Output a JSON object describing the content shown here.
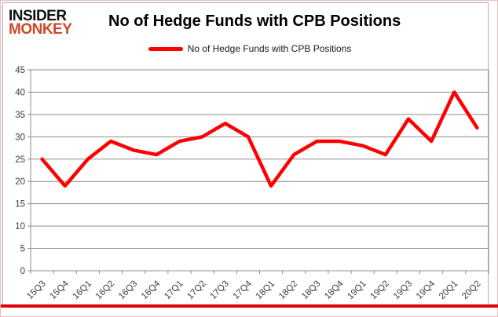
{
  "header": {
    "logo_line1": "INSIDER",
    "logo_line2": "MONKEY",
    "title": "No of Hedge Funds with CPB Positions"
  },
  "legend": {
    "label": "No of Hedge Funds with CPB Positions"
  },
  "colors": {
    "line": "#fe0000",
    "logo_red": "#cf4727",
    "grid": "#8c8c8c",
    "axis_text": "#3c3c3c",
    "bottom_bar": "#dd0000"
  },
  "chart_data": {
    "type": "line",
    "title": "No of Hedge Funds with CPB Positions",
    "categories": [
      "15Q3",
      "15Q4",
      "16Q1",
      "16Q2",
      "16Q3",
      "16Q4",
      "17Q1",
      "17Q2",
      "17Q3",
      "17Q4",
      "18Q1",
      "18Q2",
      "18Q3",
      "18Q4",
      "19Q1",
      "19Q2",
      "19Q3",
      "19Q4",
      "20Q1",
      "20Q2"
    ],
    "series": [
      {
        "name": "No of Hedge Funds with CPB Positions",
        "values": [
          25,
          19,
          25,
          29,
          27,
          26,
          29,
          30,
          33,
          30,
          19,
          26,
          29,
          29,
          28,
          26,
          34,
          29,
          40,
          32
        ]
      }
    ],
    "ylim": [
      0,
      45
    ],
    "ytick_step": 5,
    "grid": true,
    "legend_position": "top",
    "xlabel": "",
    "ylabel": ""
  }
}
